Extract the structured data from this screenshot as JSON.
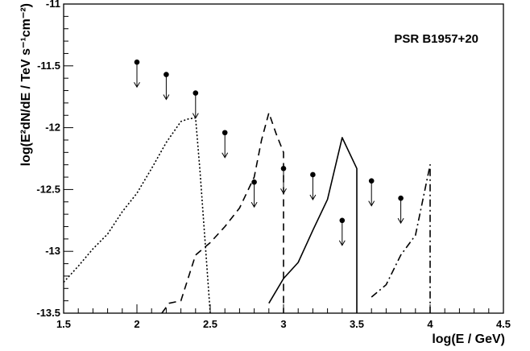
{
  "chart_data": {
    "type": "line",
    "title": "PSR B1957+20",
    "xlabel": "log(E / GeV)",
    "ylabel": "log(E²dN/dE / TeV s⁻¹cm⁻²)",
    "xlim": [
      1.5,
      4.5
    ],
    "ylim": [
      -13.5,
      -11
    ],
    "x_ticks": [
      1.5,
      2,
      2.5,
      3,
      3.5,
      4,
      4.5
    ],
    "x_tick_labels": [
      "1.5",
      "2",
      "2.5",
      "3",
      "3.5",
      "4",
      "4.5"
    ],
    "y_ticks": [
      -11,
      -11.5,
      -12,
      -12.5,
      -13,
      -13.5
    ],
    "y_tick_labels": [
      "-11",
      "-11.5",
      "-12",
      "-12.5",
      "-13",
      "-13.5"
    ],
    "grid": false,
    "upper_limits": {
      "x": [
        2.0,
        2.2,
        2.4,
        2.6,
        2.8,
        3.0,
        3.2,
        3.4,
        3.6,
        3.8
      ],
      "y": [
        -11.47,
        -11.57,
        -11.72,
        -12.04,
        -12.44,
        -12.33,
        -12.38,
        -12.75,
        -12.43,
        -12.57
      ]
    },
    "series": [
      {
        "style": "dotted",
        "x": [
          1.5,
          1.6,
          1.7,
          1.8,
          1.9,
          2.0,
          2.1,
          2.2,
          2.3,
          2.35,
          2.4,
          2.43,
          2.47,
          2.5
        ],
        "y": [
          -13.25,
          -13.12,
          -12.98,
          -12.86,
          -12.68,
          -12.53,
          -12.33,
          -12.12,
          -11.95,
          -11.93,
          -11.92,
          -12.35,
          -13.0,
          -13.5
        ]
      },
      {
        "style": "dashed",
        "x": [
          2.17,
          2.22,
          2.3,
          2.4,
          2.5,
          2.6,
          2.7,
          2.8,
          2.85,
          2.9,
          2.95,
          3.0,
          3.0
        ],
        "y": [
          -13.5,
          -13.42,
          -13.4,
          -13.03,
          -12.93,
          -12.8,
          -12.65,
          -12.4,
          -12.1,
          -11.88,
          -12.05,
          -12.2,
          -13.5
        ]
      },
      {
        "style": "solid",
        "x": [
          2.9,
          3.0,
          3.1,
          3.2,
          3.3,
          3.4,
          3.5,
          3.5
        ],
        "y": [
          -13.42,
          -13.22,
          -13.09,
          -12.83,
          -12.58,
          -12.08,
          -12.33,
          -13.5
        ]
      },
      {
        "style": "dashdot",
        "x": [
          3.6,
          3.7,
          3.8,
          3.9,
          4.0,
          4.0
        ],
        "y": [
          -13.37,
          -13.27,
          -13.03,
          -12.87,
          -12.3,
          -13.5
        ]
      }
    ]
  }
}
